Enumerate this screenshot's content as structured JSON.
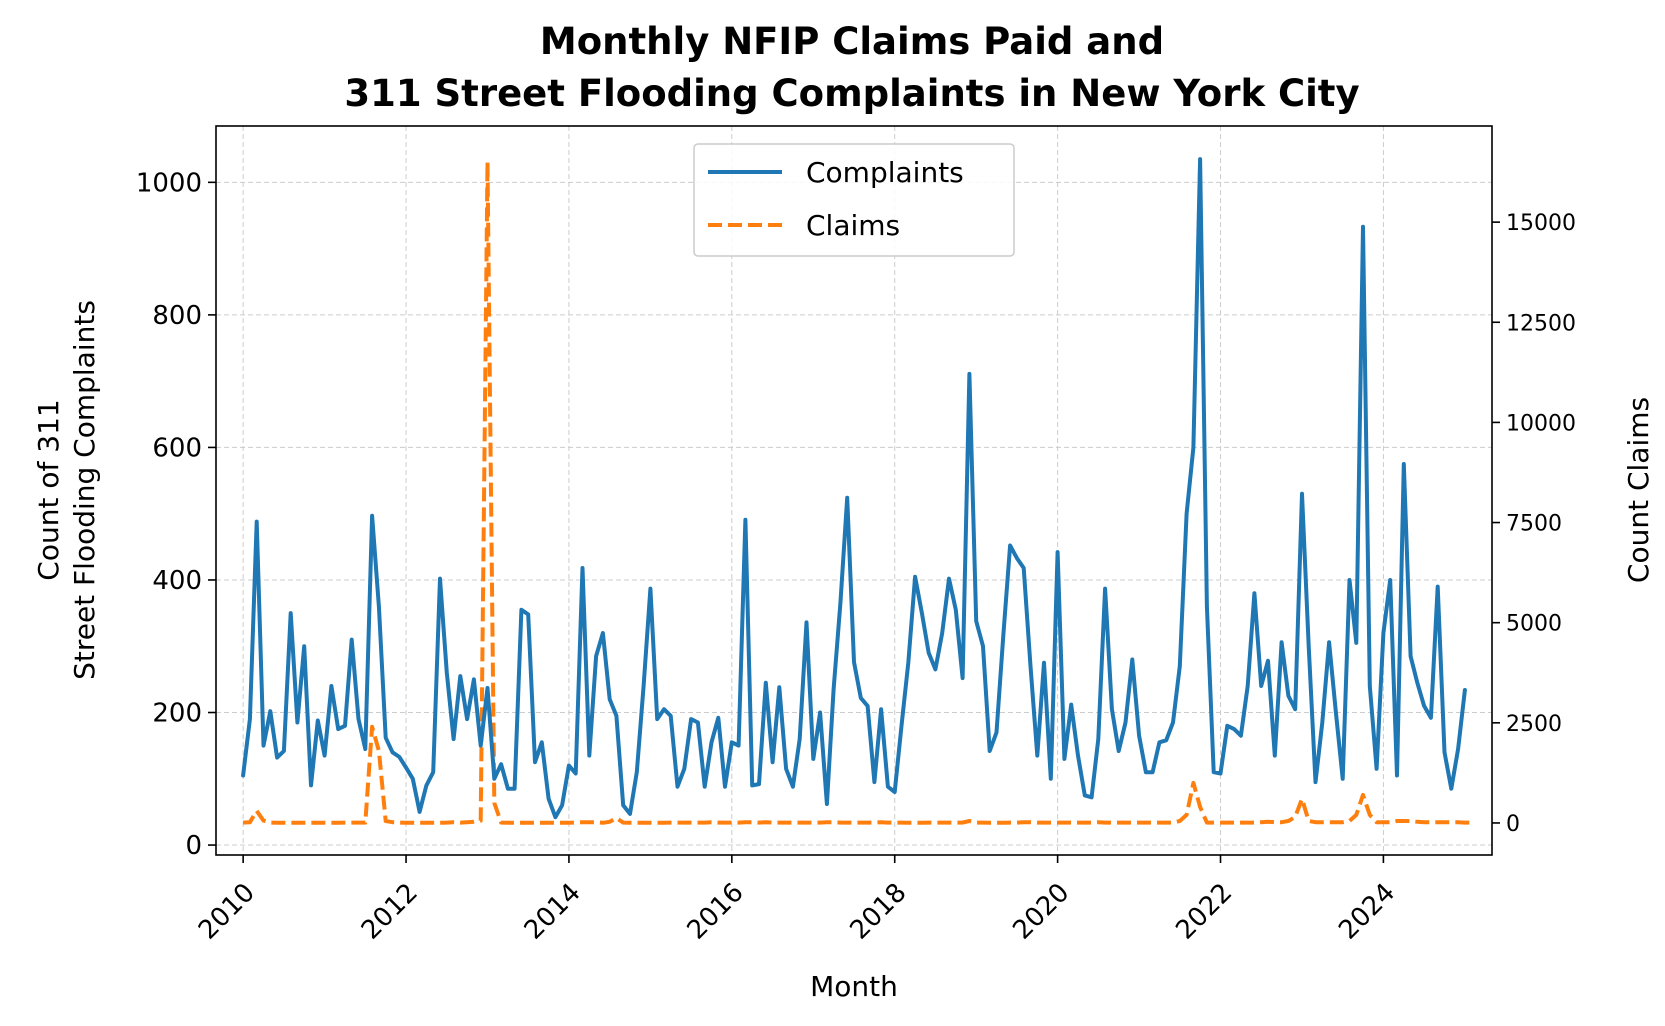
{
  "chart_data": {
    "type": "line",
    "title_line1": "Monthly NFIP Claims Paid and",
    "title_line2": "311 Street Flooding Complaints in New York City",
    "xlabel": "Month",
    "ylabel_left_line1": "Count of 311",
    "ylabel_left_line2": "Street Flooding Complaints",
    "ylabel_right": "Count Claims",
    "x_ticks": [
      "2010",
      "2012",
      "2014",
      "2016",
      "2018",
      "2020",
      "2022",
      "2024"
    ],
    "y_left_ticks": [
      "0",
      "200",
      "400",
      "600",
      "800",
      "1000"
    ],
    "y_right_ticks": [
      "0",
      "2500",
      "5000",
      "7500",
      "10000",
      "12500",
      "15000"
    ],
    "xlim": [
      "2009-09",
      "2025-05"
    ],
    "ylim_left": [
      -15,
      1085
    ],
    "ylim_right": [
      -800,
      17400
    ],
    "grid": true,
    "legend_position": "upper-center",
    "legend": [
      "Complaints",
      "Claims"
    ],
    "colors": {
      "complaints": "#1f77b4",
      "claims": "#ff7f0e"
    },
    "start_month": "2010-01",
    "series": [
      {
        "name": "Complaints",
        "axis": "left",
        "style": "solid",
        "values": [
          105,
          190,
          488,
          150,
          202,
          132,
          142,
          350,
          185,
          300,
          90,
          188,
          135,
          240,
          175,
          180,
          310,
          190,
          145,
          497,
          360,
          162,
          140,
          133,
          117,
          100,
          50,
          90,
          110,
          402,
          260,
          160,
          255,
          190,
          250,
          150,
          237,
          100,
          122,
          85,
          85,
          355,
          348,
          125,
          155,
          70,
          42,
          60,
          120,
          108,
          418,
          135,
          285,
          320,
          220,
          195,
          60,
          47,
          110,
          240,
          387,
          190,
          205,
          195,
          88,
          115,
          190,
          185,
          88,
          155,
          192,
          88,
          155,
          150,
          491,
          90,
          92,
          245,
          125,
          238,
          115,
          88,
          160,
          336,
          130,
          200,
          62,
          235,
          365,
          524,
          276,
          222,
          210,
          95,
          205,
          88,
          80,
          180,
          275,
          405,
          350,
          290,
          265,
          320,
          402,
          355,
          252,
          711,
          338,
          300,
          142,
          170,
          316,
          452,
          433,
          418,
          270,
          135,
          275,
          100,
          442,
          130,
          212,
          135,
          75,
          72,
          160,
          387,
          205,
          142,
          185,
          280,
          165,
          110,
          110,
          155,
          158,
          185,
          270,
          500,
          600,
          1035,
          360,
          110,
          108,
          180,
          175,
          165,
          240,
          380,
          240,
          278,
          135,
          306,
          225,
          205,
          530,
          300,
          95,
          185,
          306,
          200,
          100,
          400,
          305,
          933,
          240,
          115,
          320,
          400,
          105,
          575,
          285,
          245,
          210,
          192,
          390,
          140,
          85,
          145,
          234
        ]
      },
      {
        "name": "Claims",
        "axis": "right",
        "style": "dashed",
        "values": [
          10,
          20,
          300,
          60,
          10,
          5,
          5,
          5,
          5,
          5,
          5,
          5,
          5,
          5,
          5,
          10,
          10,
          10,
          10,
          2400,
          1800,
          50,
          20,
          10,
          5,
          5,
          5,
          5,
          5,
          5,
          10,
          20,
          10,
          20,
          30,
          60,
          16500,
          500,
          10,
          5,
          5,
          5,
          5,
          5,
          5,
          5,
          5,
          5,
          5,
          10,
          20,
          20,
          20,
          5,
          30,
          120,
          10,
          5,
          5,
          5,
          5,
          5,
          5,
          10,
          10,
          10,
          10,
          10,
          10,
          20,
          10,
          10,
          10,
          10,
          20,
          20,
          10,
          20,
          10,
          10,
          10,
          10,
          10,
          10,
          10,
          10,
          20,
          20,
          10,
          10,
          10,
          10,
          10,
          10,
          20,
          10,
          10,
          10,
          5,
          5,
          5,
          10,
          10,
          10,
          10,
          10,
          10,
          50,
          10,
          10,
          5,
          5,
          5,
          10,
          10,
          20,
          20,
          10,
          10,
          10,
          10,
          10,
          10,
          10,
          10,
          10,
          20,
          10,
          10,
          10,
          10,
          10,
          10,
          10,
          10,
          10,
          10,
          10,
          50,
          200,
          1000,
          400,
          10,
          10,
          10,
          10,
          10,
          10,
          10,
          10,
          20,
          30,
          20,
          20,
          50,
          150,
          600,
          50,
          20,
          20,
          20,
          20,
          20,
          50,
          200,
          700,
          200,
          20,
          20,
          20,
          50,
          50,
          50,
          30,
          20,
          20,
          20,
          20,
          20,
          20,
          10,
          10
        ]
      }
    ]
  }
}
